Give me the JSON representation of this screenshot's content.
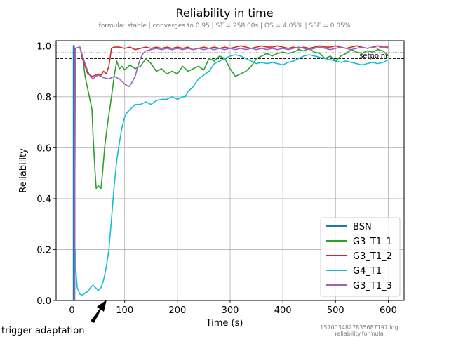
{
  "chart_data": {
    "type": "line",
    "title": "Reliability in time",
    "subtitle": "formula: stable | converges to 0.95 | ST = 258.00s | OS = 4.05% | SSE = 0.05%",
    "xlabel": "Time (s)",
    "ylabel": "Reliability",
    "xlim": [
      -30,
      630
    ],
    "ylim": [
      0.0,
      1.02
    ],
    "xticks": [
      0,
      100,
      200,
      300,
      400,
      500,
      600
    ],
    "yticks": [
      0.0,
      0.2,
      0.4,
      0.6,
      0.8,
      1.0
    ],
    "ytick_labels": [
      "0.0",
      "0.2",
      "0.4",
      "0.6",
      "0.8",
      "1.0"
    ],
    "grid": true,
    "legend_position": "bottom-right",
    "reference_lines": [
      {
        "label": "setpoint",
        "y": 0.95,
        "style": "dashed",
        "color": "#000000"
      },
      {
        "label": "",
        "y": 0.975,
        "style": "dotted",
        "color": "#7f7f7f"
      },
      {
        "label": "",
        "y": 0.925,
        "style": "dotted",
        "color": "#7f7f7f"
      }
    ],
    "annotation": {
      "text": "trigger adaptation",
      "x": 60,
      "y": 0.0
    },
    "footnote": {
      "line1": "1570034827835687197.log",
      "line2": "reliability.formula"
    },
    "series": [
      {
        "name": "BSN",
        "color": "#1f77b4",
        "points": [
          [
            3,
            0.0
          ],
          [
            3,
            1.0
          ],
          [
            4,
            1.0
          ],
          [
            4,
            0.0
          ]
        ]
      },
      {
        "name": "G3_T1_1",
        "color": "#2ca02c",
        "points": [
          [
            5,
            0.0
          ],
          [
            6,
            0.99
          ],
          [
            15,
            0.995
          ],
          [
            20,
            0.96
          ],
          [
            25,
            0.88
          ],
          [
            30,
            0.83
          ],
          [
            38,
            0.75
          ],
          [
            40,
            0.65
          ],
          [
            44,
            0.5
          ],
          [
            46,
            0.44
          ],
          [
            50,
            0.45
          ],
          [
            55,
            0.44
          ],
          [
            58,
            0.5
          ],
          [
            62,
            0.6
          ],
          [
            68,
            0.7
          ],
          [
            75,
            0.8
          ],
          [
            80,
            0.88
          ],
          [
            85,
            0.94
          ],
          [
            90,
            0.91
          ],
          [
            95,
            0.92
          ],
          [
            100,
            0.905
          ],
          [
            110,
            0.925
          ],
          [
            120,
            0.91
          ],
          [
            130,
            0.92
          ],
          [
            140,
            0.95
          ],
          [
            150,
            0.93
          ],
          [
            160,
            0.9
          ],
          [
            170,
            0.91
          ],
          [
            180,
            0.89
          ],
          [
            190,
            0.9
          ],
          [
            200,
            0.89
          ],
          [
            210,
            0.92
          ],
          [
            220,
            0.9
          ],
          [
            230,
            0.91
          ],
          [
            240,
            0.92
          ],
          [
            250,
            0.905
          ],
          [
            260,
            0.95
          ],
          [
            270,
            0.94
          ],
          [
            280,
            0.96
          ],
          [
            290,
            0.95
          ],
          [
            300,
            0.91
          ],
          [
            310,
            0.88
          ],
          [
            320,
            0.89
          ],
          [
            330,
            0.9
          ],
          [
            340,
            0.92
          ],
          [
            350,
            0.95
          ],
          [
            360,
            0.96
          ],
          [
            370,
            0.97
          ],
          [
            380,
            0.96
          ],
          [
            390,
            0.97
          ],
          [
            400,
            0.975
          ],
          [
            410,
            0.97
          ],
          [
            420,
            0.975
          ],
          [
            430,
            0.985
          ],
          [
            440,
            0.98
          ],
          [
            450,
            0.99
          ],
          [
            460,
            0.975
          ],
          [
            470,
            0.97
          ],
          [
            480,
            0.95
          ],
          [
            490,
            0.96
          ],
          [
            500,
            0.94
          ],
          [
            510,
            0.96
          ],
          [
            520,
            0.97
          ],
          [
            530,
            0.985
          ],
          [
            540,
            0.975
          ],
          [
            550,
            0.97
          ],
          [
            560,
            0.98
          ],
          [
            570,
            0.975
          ],
          [
            580,
            0.985
          ],
          [
            590,
            0.98
          ],
          [
            600,
            0.96
          ]
        ]
      },
      {
        "name": "G3_T1_2",
        "color": "#d62728",
        "points": [
          [
            5,
            0.0
          ],
          [
            6,
            0.99
          ],
          [
            15,
            0.995
          ],
          [
            20,
            0.95
          ],
          [
            25,
            0.92
          ],
          [
            30,
            0.89
          ],
          [
            38,
            0.88
          ],
          [
            45,
            0.885
          ],
          [
            50,
            0.89
          ],
          [
            55,
            0.885
          ],
          [
            60,
            0.9
          ],
          [
            65,
            0.89
          ],
          [
            70,
            0.92
          ],
          [
            75,
            0.99
          ],
          [
            80,
            0.995
          ],
          [
            90,
            0.995
          ],
          [
            100,
            0.99
          ],
          [
            110,
            0.995
          ],
          [
            120,
            0.985
          ],
          [
            130,
            0.99
          ],
          [
            140,
            0.995
          ],
          [
            150,
            0.99
          ],
          [
            160,
            0.995
          ],
          [
            170,
            0.99
          ],
          [
            180,
            0.995
          ],
          [
            190,
            0.99
          ],
          [
            200,
            0.995
          ],
          [
            210,
            0.99
          ],
          [
            220,
            0.995
          ],
          [
            230,
            0.985
          ],
          [
            240,
            0.99
          ],
          [
            250,
            0.995
          ],
          [
            260,
            0.99
          ],
          [
            270,
            0.995
          ],
          [
            280,
            0.99
          ],
          [
            290,
            0.995
          ],
          [
            300,
            0.99
          ],
          [
            310,
            0.995
          ],
          [
            320,
            1.0
          ],
          [
            330,
            0.995
          ],
          [
            340,
            0.99
          ],
          [
            350,
            0.995
          ],
          [
            360,
            1.0
          ],
          [
            370,
            0.995
          ],
          [
            380,
            0.995
          ],
          [
            390,
            1.0
          ],
          [
            400,
            0.995
          ],
          [
            410,
            0.99
          ],
          [
            420,
            0.995
          ],
          [
            430,
            0.99
          ],
          [
            440,
            0.995
          ],
          [
            450,
            0.99
          ],
          [
            460,
            0.995
          ],
          [
            470,
            1.0
          ],
          [
            480,
            0.995
          ],
          [
            490,
            0.995
          ],
          [
            500,
            1.0
          ],
          [
            510,
            0.995
          ],
          [
            520,
            0.99
          ],
          [
            530,
            0.995
          ],
          [
            540,
            1.0
          ],
          [
            550,
            0.995
          ],
          [
            560,
            0.99
          ],
          [
            570,
            0.995
          ],
          [
            580,
            1.0
          ],
          [
            590,
            0.995
          ],
          [
            600,
            0.995
          ]
        ]
      },
      {
        "name": "G4_T1",
        "color": "#17becf",
        "points": [
          [
            5,
            0.0
          ],
          [
            6,
            0.2
          ],
          [
            8,
            0.1
          ],
          [
            10,
            0.05
          ],
          [
            15,
            0.025
          ],
          [
            20,
            0.02
          ],
          [
            25,
            0.03
          ],
          [
            30,
            0.035
          ],
          [
            35,
            0.05
          ],
          [
            40,
            0.06
          ],
          [
            45,
            0.05
          ],
          [
            50,
            0.04
          ],
          [
            55,
            0.05
          ],
          [
            60,
            0.08
          ],
          [
            65,
            0.13
          ],
          [
            70,
            0.2
          ],
          [
            75,
            0.32
          ],
          [
            80,
            0.45
          ],
          [
            85,
            0.55
          ],
          [
            90,
            0.62
          ],
          [
            95,
            0.68
          ],
          [
            100,
            0.72
          ],
          [
            105,
            0.74
          ],
          [
            110,
            0.75
          ],
          [
            115,
            0.76
          ],
          [
            120,
            0.77
          ],
          [
            130,
            0.77
          ],
          [
            140,
            0.78
          ],
          [
            150,
            0.77
          ],
          [
            160,
            0.785
          ],
          [
            170,
            0.79
          ],
          [
            180,
            0.79
          ],
          [
            190,
            0.8
          ],
          [
            200,
            0.79
          ],
          [
            210,
            0.8
          ],
          [
            215,
            0.8
          ],
          [
            220,
            0.82
          ],
          [
            230,
            0.84
          ],
          [
            240,
            0.87
          ],
          [
            250,
            0.885
          ],
          [
            260,
            0.9
          ],
          [
            270,
            0.93
          ],
          [
            280,
            0.94
          ],
          [
            290,
            0.95
          ],
          [
            300,
            0.96
          ],
          [
            310,
            0.965
          ],
          [
            320,
            0.96
          ],
          [
            330,
            0.95
          ],
          [
            340,
            0.94
          ],
          [
            350,
            0.93
          ],
          [
            360,
            0.935
          ],
          [
            370,
            0.93
          ],
          [
            380,
            0.935
          ],
          [
            390,
            0.93
          ],
          [
            400,
            0.925
          ],
          [
            410,
            0.935
          ],
          [
            420,
            0.94
          ],
          [
            430,
            0.95
          ],
          [
            440,
            0.96
          ],
          [
            450,
            0.965
          ],
          [
            460,
            0.96
          ],
          [
            470,
            0.955
          ],
          [
            480,
            0.95
          ],
          [
            490,
            0.945
          ],
          [
            500,
            0.94
          ],
          [
            510,
            0.935
          ],
          [
            520,
            0.94
          ],
          [
            530,
            0.935
          ],
          [
            540,
            0.93
          ],
          [
            550,
            0.925
          ],
          [
            560,
            0.93
          ],
          [
            570,
            0.935
          ],
          [
            580,
            0.93
          ],
          [
            590,
            0.935
          ],
          [
            600,
            0.945
          ]
        ]
      },
      {
        "name": "G3_T1_3",
        "color": "#9467bd",
        "points": [
          [
            5,
            0.0
          ],
          [
            6,
            0.99
          ],
          [
            15,
            0.995
          ],
          [
            20,
            0.96
          ],
          [
            25,
            0.93
          ],
          [
            30,
            0.9
          ],
          [
            35,
            0.88
          ],
          [
            40,
            0.87
          ],
          [
            45,
            0.88
          ],
          [
            50,
            0.885
          ],
          [
            60,
            0.875
          ],
          [
            70,
            0.87
          ],
          [
            80,
            0.88
          ],
          [
            90,
            0.87
          ],
          [
            100,
            0.85
          ],
          [
            108,
            0.84
          ],
          [
            112,
            0.85
          ],
          [
            120,
            0.88
          ],
          [
            125,
            0.92
          ],
          [
            130,
            0.95
          ],
          [
            135,
            0.97
          ],
          [
            140,
            0.98
          ],
          [
            150,
            0.985
          ],
          [
            160,
            0.99
          ],
          [
            170,
            0.985
          ],
          [
            180,
            0.99
          ],
          [
            190,
            0.985
          ],
          [
            200,
            0.99
          ],
          [
            210,
            0.985
          ],
          [
            220,
            0.99
          ],
          [
            230,
            0.985
          ],
          [
            240,
            0.99
          ],
          [
            250,
            0.985
          ],
          [
            260,
            0.99
          ],
          [
            270,
            0.985
          ],
          [
            280,
            0.99
          ],
          [
            290,
            0.985
          ],
          [
            300,
            0.99
          ],
          [
            310,
            0.985
          ],
          [
            320,
            0.99
          ],
          [
            330,
            0.985
          ],
          [
            340,
            0.99
          ],
          [
            350,
            0.985
          ],
          [
            360,
            0.99
          ],
          [
            370,
            0.985
          ],
          [
            380,
            0.99
          ],
          [
            390,
            0.985
          ],
          [
            400,
            0.99
          ],
          [
            410,
            0.985
          ],
          [
            420,
            0.99
          ],
          [
            430,
            0.995
          ],
          [
            440,
            0.99
          ],
          [
            450,
            0.985
          ],
          [
            460,
            0.99
          ],
          [
            470,
            0.995
          ],
          [
            480,
            0.99
          ],
          [
            490,
            0.985
          ],
          [
            500,
            0.99
          ],
          [
            510,
            0.995
          ],
          [
            520,
            0.99
          ],
          [
            530,
            0.985
          ],
          [
            540,
            0.99
          ],
          [
            550,
            0.995
          ],
          [
            560,
            0.99
          ],
          [
            570,
            0.995
          ],
          [
            580,
            0.99
          ],
          [
            590,
            0.995
          ],
          [
            600,
            0.99
          ]
        ]
      }
    ]
  }
}
